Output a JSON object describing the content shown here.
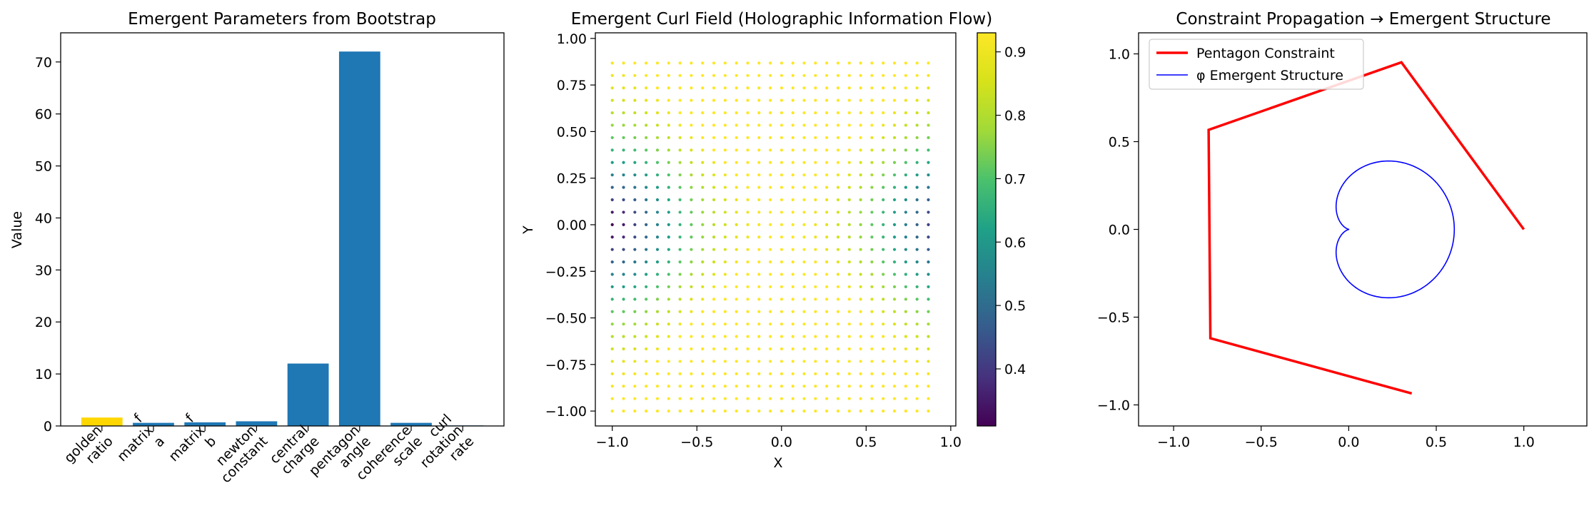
{
  "chart_data": [
    {
      "type": "bar",
      "title": "Emergent Parameters from Bootstrap",
      "xlabel": "",
      "ylabel": "Value",
      "categories": [
        "golden\nratio",
        "f\nmatrix\na",
        "f\nmatrix\nb",
        "newton\nconstant",
        "central\ncharge",
        "pentagon\nangle",
        "coherence\nscale",
        "curl\nrotation\nrate"
      ],
      "values": [
        1.618,
        0.6,
        0.7,
        0.9,
        12,
        72,
        0.6,
        0.1
      ],
      "bar_colors": [
        "#ffd700",
        "#1f77b4",
        "#1f77b4",
        "#1f77b4",
        "#1f77b4",
        "#1f77b4",
        "#1f77b4",
        "#1f77b4"
      ],
      "ylim": [
        0,
        75.6
      ],
      "yticks": [
        "0",
        "10",
        "20",
        "30",
        "40",
        "50",
        "60",
        "70"
      ],
      "grid": false
    },
    {
      "type": "scatter",
      "title": "Emergent Curl Field (Holographic Information Flow)",
      "xlabel": "X",
      "ylabel": "Y",
      "xlim": [
        -1.1,
        1.03
      ],
      "ylim": [
        -1.08,
        1.03
      ],
      "xticks": [
        "−1.0",
        "−0.5",
        "0.0",
        "0.5",
        "1.0"
      ],
      "yticks": [
        "−1.00",
        "−0.75",
        "−0.50",
        "−0.25",
        "0.00",
        "0.25",
        "0.50",
        "0.75",
        "1.00"
      ],
      "grid_x": [
        -1.0,
        0.93,
        0.0667
      ],
      "grid_y": [
        -1.0,
        0.93,
        0.0667
      ],
      "colormap": "viridis",
      "colorbar_range": [
        0.31,
        0.93
      ],
      "colorbar_ticks": [
        "0.4",
        "0.5",
        "0.6",
        "0.7",
        "0.8",
        "0.9"
      ],
      "grid": false
    },
    {
      "type": "line",
      "title": "Constraint Propagation → Emergent Structure",
      "xlabel": "",
      "ylabel": "",
      "xlim": [
        -1.2,
        1.36
      ],
      "ylim": [
        -1.12,
        1.12
      ],
      "xticks": [
        "−1.0",
        "−0.5",
        "0.0",
        "0.5",
        "1.0"
      ],
      "yticks": [
        "−1.0",
        "−0.5",
        "0.0",
        "0.5",
        "1.0"
      ],
      "legend_position": "top-left",
      "series": [
        {
          "name": "Pentagon Constraint",
          "color": "#ff0000",
          "x": [
            1.0,
            0.301,
            -0.8,
            -0.79,
            0.36
          ],
          "y": [
            0.0,
            0.952,
            0.567,
            -0.62,
            -0.935
          ]
        },
        {
          "name": "φ Emergent Structure",
          "color": "#0000ff",
          "curve": "r = a(1 - cos θ), a = 0.3, x = 0.003 - r cos θ, y = r sin θ"
        }
      ],
      "grid": false
    }
  ]
}
